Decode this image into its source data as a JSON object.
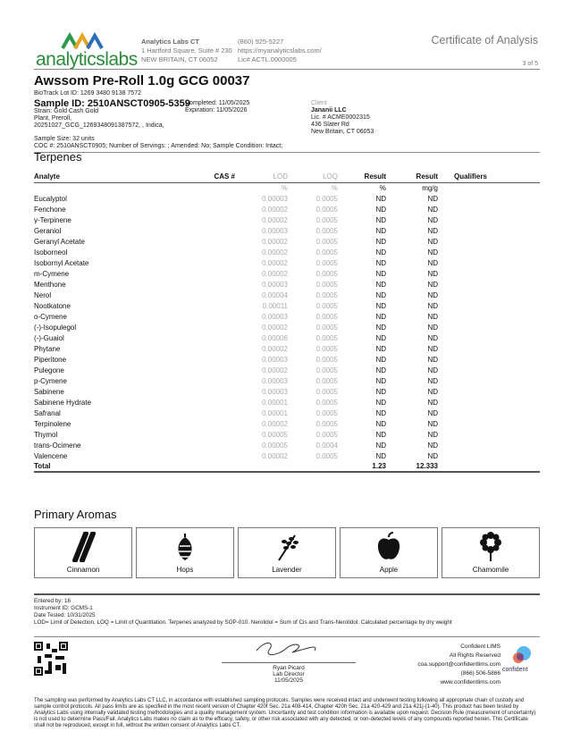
{
  "header": {
    "logo": "analyticslabs",
    "lab_name": "Analytics Labs CT",
    "lab_address1": "1 Hartford Square, Suite # 230",
    "lab_address2": "NEW BRITAIN, CT 06052",
    "phone": "(860) 925-5227",
    "website": "https://myanalyticslabs.com/",
    "license": "Lic# ACTL.0000005",
    "doc_title": "Certificate of Analysis",
    "page": "3 of 5"
  },
  "sample": {
    "product": "Awssom Pre-Roll 1.0g GCG 00037",
    "biotrack": "BioTrack Lot ID: 1269 3480 9138 7572",
    "sample_id": "Sample ID: 2510ANSCT0905-5359",
    "strain": "Strain: Gold Cash Gold",
    "type": "Plant, Preroll,",
    "batch": "20251027_GCG_1269348091387572, , Indica,",
    "completed": "Completed: 11/05/2025",
    "expiration": "Expiration: 11/05/2026",
    "size": "Sample Size: 32 units",
    "coc": "COC #: 2510ANSCT0905; Number of Servings: ; Amended: No; Sample Condition: Intact;"
  },
  "client": {
    "label": "Client",
    "name": "Jananii LLC",
    "lic": "Lic. # ACME0002315",
    "addr1": "436 Slater Rd",
    "addr2": "New Britain, CT 06053"
  },
  "terpenes": {
    "section": "Terpenes",
    "headers": [
      "Analyte",
      "CAS #",
      "LOD",
      "LOQ",
      "Result",
      "Result",
      "Qualifiers"
    ],
    "units": [
      "",
      "",
      "%",
      "%",
      "%",
      "mg/g",
      ""
    ],
    "rows": [
      [
        "Eucalyptol",
        "0.00003",
        "0.0005",
        "ND",
        "ND"
      ],
      [
        "Fenchone",
        "0.00002",
        "0.0005",
        "ND",
        "ND"
      ],
      [
        "γ-Terpinene",
        "0.00002",
        "0.0005",
        "ND",
        "ND"
      ],
      [
        "Geraniol",
        "0.00003",
        "0.0005",
        "ND",
        "ND"
      ],
      [
        "Geranyl Acetate",
        "0.00002",
        "0.0005",
        "ND",
        "ND"
      ],
      [
        "Isoborneol",
        "0.00002",
        "0.0005",
        "ND",
        "ND"
      ],
      [
        "Isobornyl Acetate",
        "0.00002",
        "0.0005",
        "ND",
        "ND"
      ],
      [
        "m-Cymene",
        "0.00002",
        "0.0005",
        "ND",
        "ND"
      ],
      [
        "Menthone",
        "0.00003",
        "0.0005",
        "ND",
        "ND"
      ],
      [
        "Nerol",
        "0.00004",
        "0.0005",
        "ND",
        "ND"
      ],
      [
        "Nootkatone",
        "0.00011",
        "0.0005",
        "ND",
        "ND"
      ],
      [
        "o-Cymene",
        "0.00003",
        "0.0005",
        "ND",
        "ND"
      ],
      [
        "(-)-Isopulegol",
        "0.00002",
        "0.0005",
        "ND",
        "ND"
      ],
      [
        "(-)-Guaiol",
        "0.00006",
        "0.0005",
        "ND",
        "ND"
      ],
      [
        "Phytane",
        "0.00002",
        "0.0005",
        "ND",
        "ND"
      ],
      [
        "Piperitone",
        "0.00003",
        "0.0005",
        "ND",
        "ND"
      ],
      [
        "Pulegone",
        "0.00002",
        "0.0005",
        "ND",
        "ND"
      ],
      [
        "p-Cymene",
        "0.00003",
        "0.0005",
        "ND",
        "ND"
      ],
      [
        "Sabinene",
        "0.00003",
        "0.0005",
        "ND",
        "ND"
      ],
      [
        "Sabinene Hydrate",
        "0.00001",
        "0.0005",
        "ND",
        "ND"
      ],
      [
        "Safranal",
        "0.00001",
        "0.0005",
        "ND",
        "ND"
      ],
      [
        "Terpinolene",
        "0.00002",
        "0.0005",
        "ND",
        "ND"
      ],
      [
        "Thymol",
        "0.00005",
        "0.0005",
        "ND",
        "ND"
      ],
      [
        "trans-Ocimene",
        "0.00005",
        "0.0004",
        "ND",
        "ND"
      ],
      [
        "Valencene",
        "0.00002",
        "0.0005",
        "ND",
        "ND"
      ]
    ],
    "total": {
      "label": "Total",
      "pct": "1.23",
      "mgg": "12.333"
    }
  },
  "aromas": {
    "title": "Primary Aromas",
    "items": [
      {
        "label": "Cinnamon",
        "icon": "cinnamon-icon"
      },
      {
        "label": "Hops",
        "icon": "hops-icon"
      },
      {
        "label": "Lavender",
        "icon": "lavender-icon"
      },
      {
        "label": "Apple",
        "icon": "apple-icon"
      },
      {
        "label": "Chamomile",
        "icon": "chamomile-icon"
      }
    ]
  },
  "footer": {
    "entered": "Entered by: 16",
    "instrument": "Instrument ID: GCMS-1",
    "date_tested": "Date Tested: 10/31/2025",
    "notes": "LOD= Limit of Detection, LOQ = Limit of Quantitation. Terpenes analyzed by SOP-010. Nerolidol = Sum of Cis and Trans-Nerolidol. Calculated percentage by dry weight",
    "signer": "Ryan Picard",
    "signer_title": "Lab Director",
    "sign_date": "11/05/2025",
    "lims": [
      "Confident LIMS",
      "All Rights Reserved",
      "coa.support@confidentlims.com",
      "(866) 506-5866",
      "www.confidentlims.com"
    ],
    "lims_logo": "confident",
    "disclaimer": "The sampling was performed by Analytics Labs CT LLC, in accordance with established sampling protocols. Samples were received intact and underwent testing following all appropriate chain of custody and sample control protocols. All pass limits are as specified in the most recent version of Chapter 420f Sec. 21a 408-414, Chapter 420h Sec. 21a 420-429 and 21a 421j-(1-40). This product has been tested by Analytics Labs using internally validated testing methodologies and a quality management system. Uncertainty and test condition information is available upon request. Decision Rule (measurement of uncertainty) is not used to determine Pass/Fail. Analytics Labs makes no claim as to the efficacy, safety, or other risk associated with any detected, or non-detected levels of any compounds reported herein. This Certificate shall not be reproduced, except in full, without the written consent of Analytics Labs CT."
  },
  "colors": {
    "brand_green": "#2a8a3a",
    "brand_blue": "#2a6fb8",
    "muted": "#777777"
  }
}
